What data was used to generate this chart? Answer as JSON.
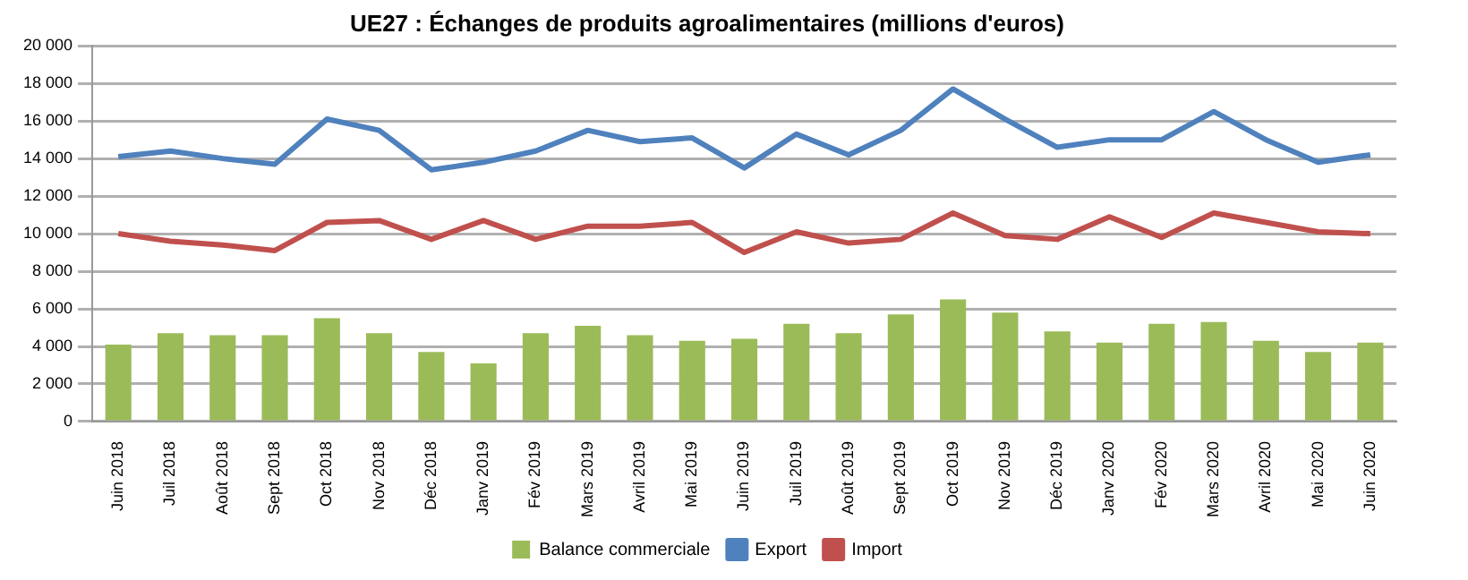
{
  "chart_data": {
    "type": "bar",
    "title": "UE27 : Échanges de produits agroalimentaires (millions d'euros)",
    "categories": [
      "Juin 2018",
      "Juil 2018",
      "Août 2018",
      "Sept 2018",
      "Oct 2018",
      "Nov 2018",
      "Déc 2018",
      "Janv 2019",
      "Fév 2019",
      "Mars 2019",
      "Avril 2019",
      "Mai 2019",
      "Juin 2019",
      "Juil 2019",
      "Août 2019",
      "Sept 2019",
      "Oct 2019",
      "Nov 2019",
      "Déc 2019",
      "Janv 2020",
      "Fév 2020",
      "Mars 2020",
      "Avril 2020",
      "Mai 2020",
      "Juin 2020"
    ],
    "series": [
      {
        "name": "Balance commerciale",
        "color": "#9bbb59",
        "values": [
          4100,
          4700,
          4600,
          4600,
          5500,
          4700,
          3700,
          3100,
          4700,
          5100,
          4600,
          4300,
          4400,
          5200,
          4700,
          5700,
          6500,
          5800,
          4800,
          4200,
          5200,
          5300,
          4300,
          3700,
          4200
        ]
      },
      {
        "name": "Export",
        "type": "line",
        "color": "#4f81bd",
        "values": [
          14100,
          14400,
          14000,
          13700,
          16100,
          15500,
          13400,
          13800,
          14400,
          15500,
          14900,
          15100,
          13500,
          15300,
          14200,
          15500,
          17700,
          16100,
          14600,
          15000,
          15000,
          16500,
          15000,
          13800,
          14200
        ]
      },
      {
        "name": "Import",
        "type": "line",
        "color": "#c0504d",
        "values": [
          10000,
          9600,
          9400,
          9100,
          10600,
          10700,
          9700,
          10700,
          9700,
          10400,
          10400,
          10600,
          9000,
          10100,
          9500,
          9700,
          11100,
          9900,
          9700,
          10900,
          9800,
          11100,
          10600,
          10100,
          10000
        ]
      }
    ],
    "ylim": [
      0,
      20000
    ],
    "yticks": [
      {
        "value": 0,
        "label": "0"
      },
      {
        "value": 2000,
        "label": "2 000"
      },
      {
        "value": 4000,
        "label": "4 000"
      },
      {
        "value": 6000,
        "label": "6 000"
      },
      {
        "value": 8000,
        "label": "8 000"
      },
      {
        "value": 10000,
        "label": "10 000"
      },
      {
        "value": 12000,
        "label": "12 000"
      },
      {
        "value": 14000,
        "label": "14 000"
      },
      {
        "value": 16000,
        "label": "16 000"
      },
      {
        "value": 18000,
        "label": "18 000"
      },
      {
        "value": 20000,
        "label": "20 000"
      }
    ],
    "grid": "y",
    "legend": "bottom",
    "marker": "none",
    "line_style": "solid"
  }
}
